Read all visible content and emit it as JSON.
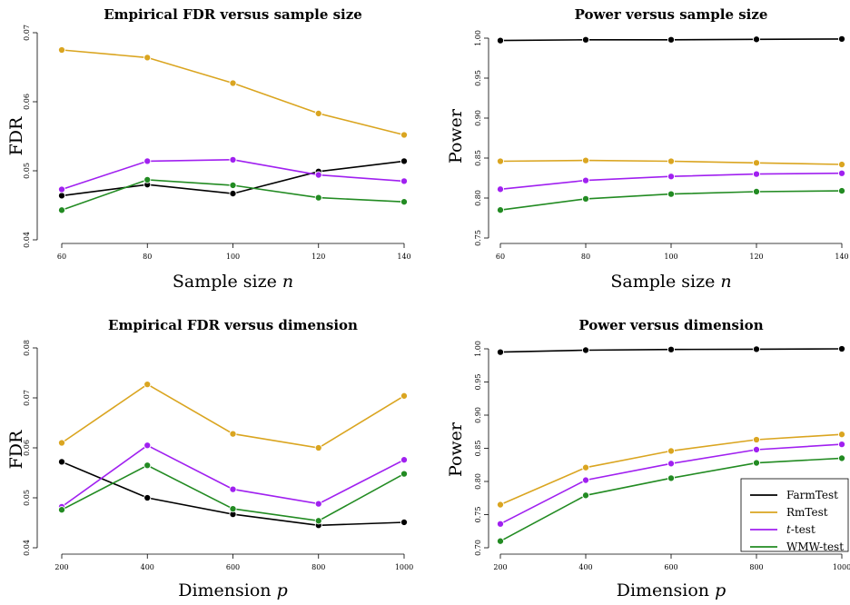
{
  "colors": {
    "FarmTest": "#000000",
    "RmTest": "#DAA520",
    "t-test": "#A020F0",
    "WMW-test": "#228B22"
  },
  "legend": {
    "entries": [
      "FarmTest",
      "RmTest",
      "t-test",
      "WMW-test"
    ],
    "placement": "bottom-right of bottom-right panel"
  },
  "chart_data": [
    {
      "type": "line",
      "title": "Empirical FDR versus sample size",
      "xlabel": "Sample size n",
      "ylabel": "FDR",
      "x": [
        60,
        80,
        100,
        120,
        140
      ],
      "xticks": [
        "60",
        "80",
        "100",
        "120",
        "140"
      ],
      "ylim": [
        0.04,
        0.07
      ],
      "yticks": [
        "0.04",
        "0.05",
        "0.06",
        "0.07"
      ],
      "series": [
        {
          "name": "FarmTest",
          "values": [
            0.0464,
            0.048,
            0.0467,
            0.0499,
            0.0514
          ]
        },
        {
          "name": "RmTest",
          "values": [
            0.0675,
            0.0664,
            0.0627,
            0.0583,
            0.0552
          ]
        },
        {
          "name": "t-test",
          "values": [
            0.0473,
            0.0514,
            0.0516,
            0.0494,
            0.0485
          ]
        },
        {
          "name": "WMW-test",
          "values": [
            0.0443,
            0.0487,
            0.0479,
            0.0461,
            0.0455
          ]
        }
      ]
    },
    {
      "type": "line",
      "title": "Power versus sample size",
      "xlabel": "Sample size n",
      "ylabel": "Power",
      "x": [
        60,
        80,
        100,
        120,
        140
      ],
      "xticks": [
        "60",
        "80",
        "100",
        "120",
        "140"
      ],
      "ylim": [
        0.75,
        1.0
      ],
      "yticks": [
        "0.75",
        "0.80",
        "0.85",
        "0.90",
        "0.95",
        "1.00"
      ],
      "series": [
        {
          "name": "FarmTest",
          "values": [
            0.997,
            0.998,
            0.998,
            0.9985,
            0.999
          ]
        },
        {
          "name": "RmTest",
          "values": [
            0.846,
            0.847,
            0.846,
            0.844,
            0.842
          ]
        },
        {
          "name": "t-test",
          "values": [
            0.811,
            0.822,
            0.827,
            0.83,
            0.831
          ]
        },
        {
          "name": "WMW-test",
          "values": [
            0.785,
            0.799,
            0.805,
            0.808,
            0.809
          ]
        }
      ]
    },
    {
      "type": "line",
      "title": "Empirical FDR versus dimension",
      "xlabel": "Dimension p",
      "ylabel": "FDR",
      "x": [
        200,
        400,
        600,
        800,
        1000
      ],
      "xticks": [
        "200",
        "400",
        "600",
        "800",
        "1000"
      ],
      "ylim": [
        0.04,
        0.08
      ],
      "yticks": [
        "0.04",
        "0.05",
        "0.06",
        "0.07",
        "0.08"
      ],
      "series": [
        {
          "name": "FarmTest",
          "values": [
            0.0572,
            0.05,
            0.0467,
            0.0445,
            0.0451
          ]
        },
        {
          "name": "RmTest",
          "values": [
            0.061,
            0.0727,
            0.0628,
            0.06,
            0.0704
          ]
        },
        {
          "name": "t-test",
          "values": [
            0.0482,
            0.0605,
            0.0517,
            0.0488,
            0.0576
          ]
        },
        {
          "name": "WMW-test",
          "values": [
            0.0476,
            0.0565,
            0.0478,
            0.0454,
            0.0548
          ]
        }
      ]
    },
    {
      "type": "line",
      "title": "Power versus dimension",
      "xlabel": "Dimension p",
      "ylabel": "Power",
      "x": [
        200,
        400,
        600,
        800,
        1000
      ],
      "xticks": [
        "200",
        "400",
        "600",
        "800",
        "1000"
      ],
      "ylim": [
        0.7,
        1.0
      ],
      "yticks": [
        "0.70",
        "0.75",
        "0.80",
        "0.85",
        "0.90",
        "0.95",
        "1.00"
      ],
      "series": [
        {
          "name": "FarmTest",
          "values": [
            0.995,
            0.998,
            0.999,
            0.9995,
            1.0
          ]
        },
        {
          "name": "RmTest",
          "values": [
            0.765,
            0.821,
            0.846,
            0.863,
            0.871
          ]
        },
        {
          "name": "t-test",
          "values": [
            0.736,
            0.802,
            0.827,
            0.848,
            0.856
          ]
        },
        {
          "name": "WMW-test",
          "values": [
            0.71,
            0.779,
            0.805,
            0.828,
            0.835
          ]
        }
      ]
    }
  ]
}
